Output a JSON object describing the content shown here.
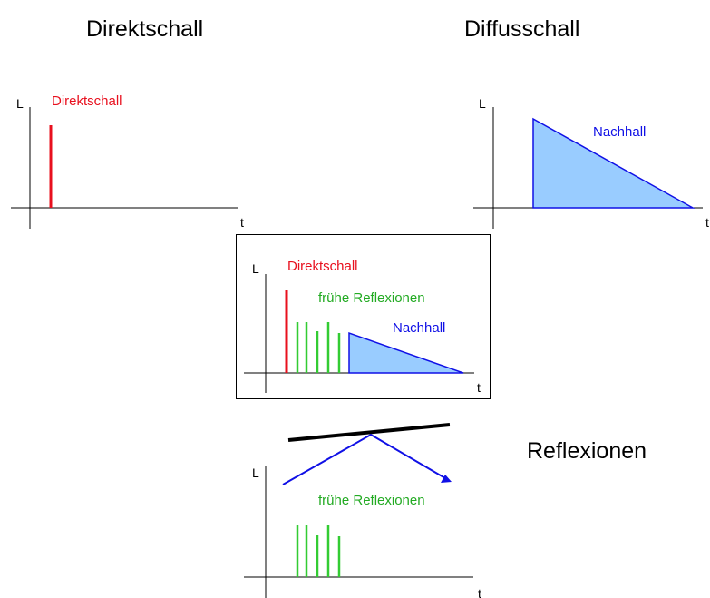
{
  "headings": {
    "direct": "Direktschall",
    "diffuse": "Diffusschall",
    "reflections": "Reflexionen"
  },
  "axes": {
    "y": "L",
    "x": "t"
  },
  "labels": {
    "direct_sound": "Direktschall",
    "early_reflections": "frühe Reflexionen",
    "reverb": "Nachhall"
  },
  "colors": {
    "direct": "#e8101e",
    "reflections": "#33cc33",
    "reverb_stroke": "#1010e6",
    "reverb_fill": "#99ccff",
    "axis": "#000000"
  }
}
